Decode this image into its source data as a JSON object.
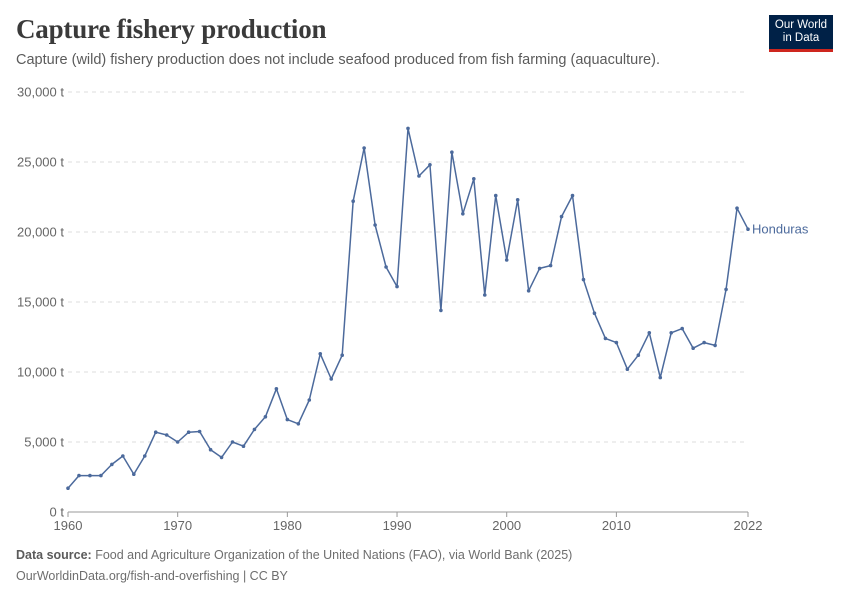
{
  "header": {
    "title": "Capture fishery production",
    "subtitle": "Capture (wild) fishery production does not include seafood produced from fish farming (aquaculture).",
    "logo_line1": "Our World",
    "logo_line2": "in Data"
  },
  "footer": {
    "source_label": "Data source:",
    "source_text": "Food and Agriculture Organization of the United Nations (FAO), via World Bank (2025)",
    "url_text": "OurWorldinData.org/fish-and-overfishing | CC BY"
  },
  "colors": {
    "series": "#4c6a9c",
    "grid": "#dddddd",
    "logo_bg": "#002147",
    "logo_accent": "#ce261e"
  },
  "chart_data": {
    "type": "line",
    "title": "Capture fishery production",
    "xlim": [
      1960,
      2022
    ],
    "ylim": [
      0,
      30000
    ],
    "x_ticks": [
      1960,
      1970,
      1980,
      1990,
      2000,
      2010,
      2022
    ],
    "x_tick_labels": [
      "1960",
      "1970",
      "1980",
      "1990",
      "2000",
      "2010",
      "2022"
    ],
    "y_ticks": [
      0,
      5000,
      10000,
      15000,
      20000,
      25000,
      30000
    ],
    "y_tick_labels": [
      "0 t",
      "5,000 t",
      "10,000 t",
      "15,000 t",
      "20,000 t",
      "25,000 t",
      "30,000 t"
    ],
    "grid": "horizontal dashed",
    "series": [
      {
        "name": "Honduras",
        "color": "#4c6a9c",
        "x": [
          1960,
          1961,
          1962,
          1963,
          1964,
          1965,
          1966,
          1967,
          1968,
          1969,
          1970,
          1971,
          1972,
          1973,
          1974,
          1975,
          1976,
          1977,
          1978,
          1979,
          1980,
          1981,
          1982,
          1983,
          1984,
          1985,
          1986,
          1987,
          1988,
          1989,
          1990,
          1991,
          1992,
          1993,
          1994,
          1995,
          1996,
          1997,
          1998,
          1999,
          2000,
          2001,
          2002,
          2003,
          2004,
          2005,
          2006,
          2007,
          2008,
          2009,
          2010,
          2011,
          2012,
          2013,
          2014,
          2015,
          2016,
          2017,
          2018,
          2019,
          2020,
          2021,
          2022
        ],
        "y": [
          1700,
          2600,
          2600,
          2600,
          3400,
          4000,
          2700,
          4000,
          5700,
          5500,
          5000,
          5700,
          5750,
          4450,
          3900,
          5000,
          4700,
          5900,
          6800,
          8800,
          6600,
          6300,
          8000,
          11300,
          9500,
          11200,
          22200,
          26000,
          20500,
          17500,
          16100,
          27400,
          24000,
          24800,
          14400,
          25700,
          21300,
          23800,
          15500,
          22600,
          18000,
          22300,
          15800,
          17400,
          17600,
          21100,
          22600,
          16600,
          14200,
          12400,
          12100,
          10200,
          11200,
          12800,
          9600,
          12800,
          13100,
          11700,
          12100,
          11900,
          15900,
          21700,
          20200
        ]
      }
    ]
  }
}
